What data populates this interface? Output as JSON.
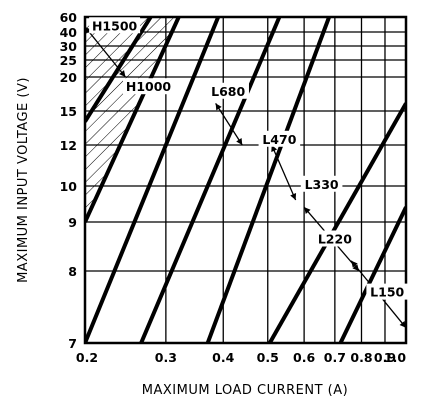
{
  "chart_data": {
    "type": "line",
    "xlabel": "MAXIMUM LOAD CURRENT (A)",
    "ylabel": "MAXIMUM INPUT VOLTAGE (V)",
    "x_scale": "log",
    "y_scale": "nonlinear",
    "xlim": [
      0.2,
      1.0
    ],
    "ylim": [
      7,
      60
    ],
    "grid": true,
    "x_ticks": [
      {
        "value": 0.2,
        "label": "0.2"
      },
      {
        "value": 0.3,
        "label": "0.3"
      },
      {
        "value": 0.4,
        "label": "0.4"
      },
      {
        "value": 0.5,
        "label": "0.5"
      },
      {
        "value": 0.6,
        "label": "0.6"
      },
      {
        "value": 0.7,
        "label": "0.7"
      },
      {
        "value": 0.8,
        "label": "0.8"
      },
      {
        "value": 0.9,
        "label": "0.9"
      },
      {
        "value": 1.0,
        "label": "1.0"
      }
    ],
    "y_ticks": [
      {
        "value": 7,
        "label": "7"
      },
      {
        "value": 8,
        "label": "8"
      },
      {
        "value": 9,
        "label": "9"
      },
      {
        "value": 10,
        "label": "10"
      },
      {
        "value": 12,
        "label": "12"
      },
      {
        "value": 15,
        "label": "15"
      },
      {
        "value": 20,
        "label": "20"
      },
      {
        "value": 25,
        "label": "25"
      },
      {
        "value": 30,
        "label": "30"
      },
      {
        "value": 40,
        "label": "40"
      },
      {
        "value": 60,
        "label": "60"
      }
    ],
    "series": [
      {
        "name": "H1500",
        "x": [
          0.2,
          0.278
        ],
        "y": [
          14,
          60
        ]
      },
      {
        "name": "H1000",
        "x": [
          0.2,
          0.32
        ],
        "y": [
          9,
          60
        ]
      },
      {
        "name": "L680",
        "x": [
          0.2,
          0.39
        ],
        "y": [
          7,
          60
        ]
      },
      {
        "name": "L470",
        "x": [
          0.265,
          0.53
        ],
        "y": [
          7,
          60
        ]
      },
      {
        "name": "L330",
        "x": [
          0.37,
          0.68
        ],
        "y": [
          7,
          60
        ]
      },
      {
        "name": "L220",
        "x": [
          0.505,
          1.0
        ],
        "y": [
          7,
          16
        ]
      },
      {
        "name": "L150",
        "x": [
          0.72,
          1.0
        ],
        "y": [
          7,
          9.4
        ]
      }
    ],
    "shaded_region": {
      "description": "hatched area left of H1000 line",
      "x_from": 0.2,
      "bounded_by": "H1000"
    },
    "annotations": [
      {
        "text": "H1500"
      },
      {
        "text": "H1000"
      },
      {
        "text": "L680"
      },
      {
        "text": "L470"
      },
      {
        "text": "L330"
      },
      {
        "text": "L220"
      },
      {
        "text": "L150"
      }
    ]
  }
}
